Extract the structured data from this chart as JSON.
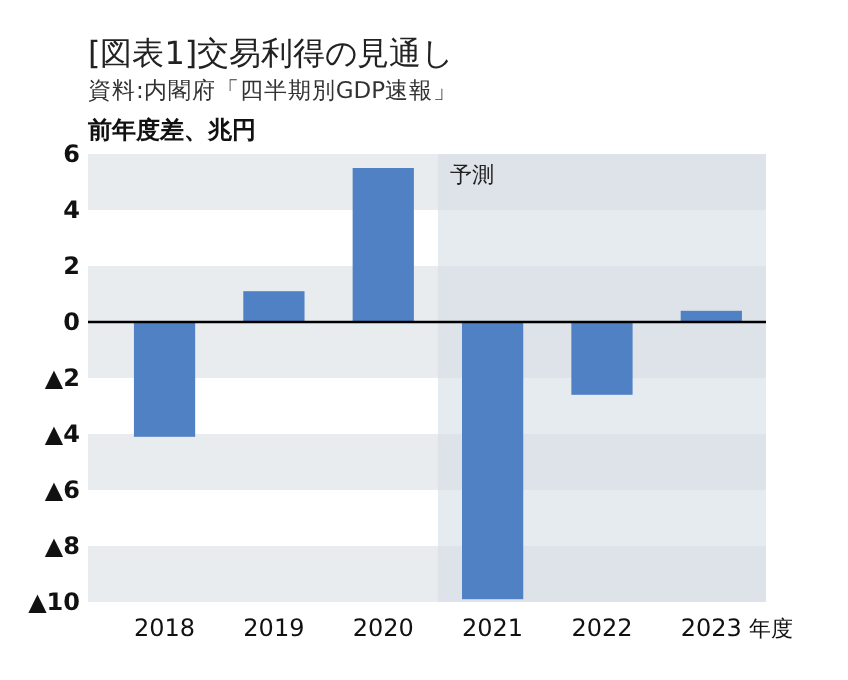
{
  "chart_data": {
    "type": "bar",
    "title": "[図表1]交易利得の見通し",
    "subtitle": "資料:内閣府「四半期別GDP速報」",
    "ylabel": "前年度差、兆円",
    "xlabel": "年度",
    "categories": [
      "2018",
      "2019",
      "2020",
      "2021",
      "2022",
      "2023"
    ],
    "values": [
      -4.1,
      1.1,
      5.5,
      -9.9,
      -2.6,
      0.4
    ],
    "color": "#4f81c4",
    "ylim": [
      -10,
      6
    ],
    "yticks": [
      {
        "value": -10,
        "label": "▲10"
      },
      {
        "value": -8,
        "label": "▲8"
      },
      {
        "value": -6,
        "label": "▲6"
      },
      {
        "value": -4,
        "label": "▲4"
      },
      {
        "value": -2,
        "label": "▲2"
      },
      0,
      2,
      4,
      6
    ],
    "bands": [
      {
        "axis": "y",
        "from": -10,
        "to": -8,
        "color": "#e8ecef"
      },
      {
        "axis": "y",
        "from": -6,
        "to": -4,
        "color": "#e8ecef"
      },
      {
        "axis": "y",
        "from": -2,
        "to": 2,
        "color": "#e8ecef"
      },
      {
        "axis": "y",
        "from": 4,
        "to": 6,
        "color": "#e8ecef"
      },
      {
        "axis": "x",
        "from": "2021",
        "to": "2023",
        "label": "予測",
        "color": "#d6dee4"
      }
    ],
    "ref_lines": [
      {
        "axis": "y",
        "value": 0,
        "color": "#000000"
      }
    ],
    "grid": false
  }
}
